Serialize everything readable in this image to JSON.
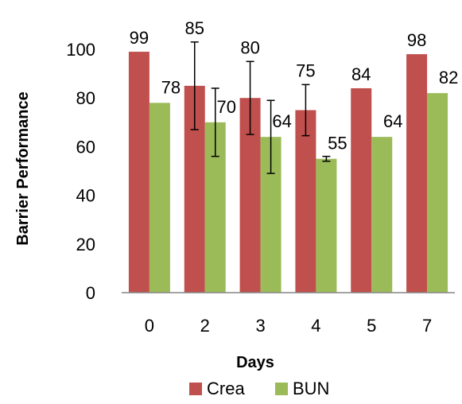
{
  "chart_data": {
    "type": "bar",
    "categories": [
      "0",
      "2",
      "3",
      "4",
      "5",
      "7"
    ],
    "series": [
      {
        "name": "Crea",
        "values": [
          99,
          85,
          80,
          75,
          84,
          98
        ],
        "error": [
          null,
          18,
          15,
          10.5,
          null,
          null
        ],
        "color": "#c0504d"
      },
      {
        "name": "BUN",
        "values": [
          78,
          70,
          64,
          55,
          64,
          82
        ],
        "error": [
          null,
          14,
          15,
          1,
          null,
          null
        ],
        "color": "#9bbb59"
      }
    ],
    "data_labels": [
      [
        "99",
        "85",
        "80",
        "75",
        "84",
        "98"
      ],
      [
        "78",
        "70",
        "64",
        "55",
        "64",
        "82"
      ]
    ],
    "xlabel": "Days",
    "ylabel": "Barrier Performance",
    "ylim": [
      0,
      100
    ],
    "yticks": [
      "0",
      "20",
      "40",
      "60",
      "80",
      "100"
    ],
    "grid": false,
    "legend_position": "bottom"
  }
}
